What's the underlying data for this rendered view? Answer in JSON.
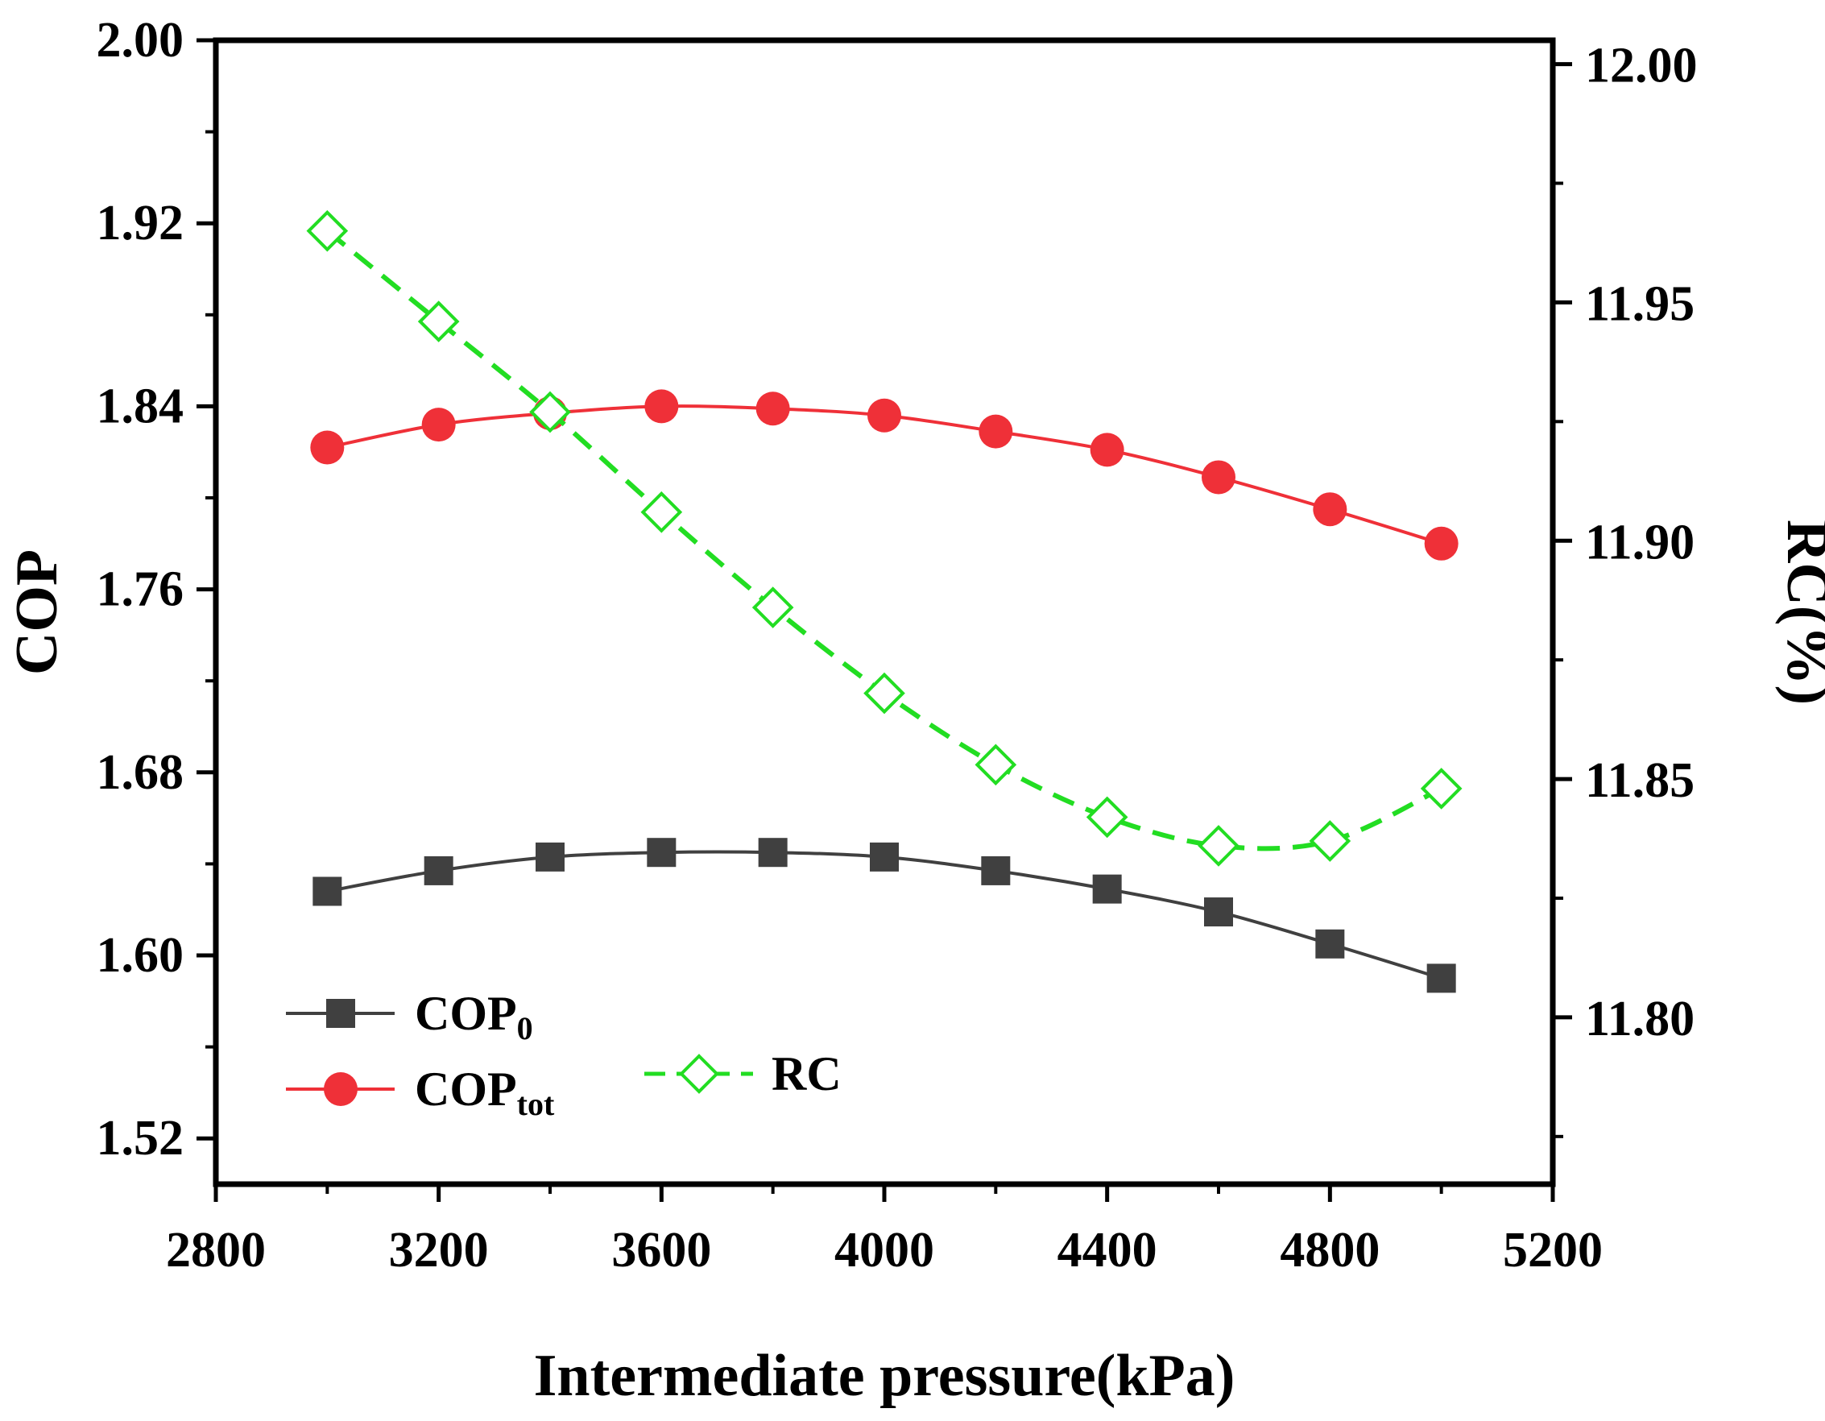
{
  "chart_data": {
    "type": "line",
    "title": "",
    "xlabel": "Intermediate pressure(kPa)",
    "ylabel": "COP",
    "y2label": "RC(%)",
    "xlim": [
      2800,
      5200
    ],
    "ylim": [
      1.5,
      2.0
    ],
    "y2lim": [
      11.765,
      12.005
    ],
    "xticks": [
      "2800",
      "3200",
      "3600",
      "4000",
      "4400",
      "4800",
      "5200"
    ],
    "yticks": [
      "1.52",
      "1.60",
      "1.68",
      "1.76",
      "1.84",
      "1.92",
      "2.00"
    ],
    "y2ticks": [
      "11.80",
      "11.85",
      "11.90",
      "11.95",
      "12.00"
    ],
    "x": [
      3000,
      3200,
      3400,
      3600,
      3800,
      4000,
      4200,
      4400,
      4600,
      4800,
      5000
    ],
    "series": [
      {
        "name": "COP",
        "name_sub": "0",
        "axis": "left",
        "color": "#404040",
        "marker": "square",
        "line": "solid",
        "values": [
          1.628,
          1.637,
          1.643,
          1.645,
          1.645,
          1.643,
          1.637,
          1.629,
          1.619,
          1.605,
          1.59
        ]
      },
      {
        "name": "COP",
        "name_sub": "tot",
        "axis": "left",
        "color": "#ef3038",
        "marker": "circle",
        "line": "solid",
        "values": [
          1.822,
          1.832,
          1.837,
          1.84,
          1.839,
          1.836,
          1.829,
          1.821,
          1.809,
          1.795,
          1.78
        ]
      },
      {
        "name": "RC",
        "name_sub": "",
        "axis": "right",
        "color": "#22dd22",
        "marker": "diamond-open",
        "line": "dashed",
        "values": [
          11.965,
          11.946,
          11.927,
          11.906,
          11.886,
          11.868,
          11.853,
          11.842,
          11.836,
          11.837,
          11.848
        ]
      }
    ],
    "legend": "lower-left"
  }
}
